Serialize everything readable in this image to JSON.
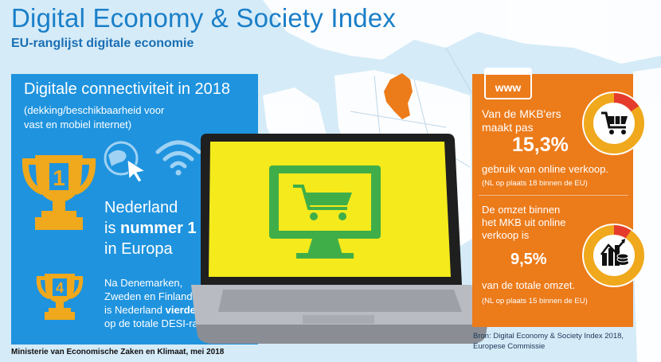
{
  "header": {
    "title": "Digital Economy & Society Index",
    "subtitle": "EU-ranglijst digitale economie"
  },
  "left_panel": {
    "heading": "Digitale connectiviteit in 2018",
    "sub_line1": "(dekking/beschikbaarheid voor",
    "sub_line2": "vast en mobiel internet)",
    "main_line1": "Nederland",
    "main_line2_pre": "is ",
    "main_line2_bold": "nummer 1",
    "main_line3": "in Europa",
    "trophy1_number": "1",
    "trophy4_number": "4",
    "second_line1": "Na Denemarken,",
    "second_line2": "Zweden en Finland",
    "second_line3_pre": "is Nederland ",
    "second_line3_bold": "vierde",
    "second_line4": "op de totale DESI-ranglijst."
  },
  "right_panel": {
    "www_label": "www",
    "block1_line1": "Van de MKB'ers",
    "block1_line2": "maakt pas",
    "block1_value": "15,3%",
    "block1_line3": "gebruik van online verkoop.",
    "block1_note": "(NL op plaats 18 binnen de EU)",
    "block2_line1": "De omzet binnen",
    "block2_line2": "het MKB uit online",
    "block2_line3": "verkoop is",
    "block2_value": "9,5%",
    "block2_line4": "van de totale omzet.",
    "block2_note": "(NL op plaats 15 binnen de EU)",
    "donut1_fraction": 0.153,
    "donut2_fraction": 0.095
  },
  "source": {
    "line1": "Bron: Digital Economy & Society Index 2018,",
    "line2": "Europese Commissie"
  },
  "footer": "Ministerie van Economische Zaken en Klimaat, mei 2018",
  "colors": {
    "blue_panel": "#1f93de",
    "orange_panel": "#ec7b1a",
    "gold": "#f0a81c",
    "laptop_screen": "#f4ea1c",
    "green_icon": "#3fae49",
    "netherlands": "#ec7b1a"
  }
}
